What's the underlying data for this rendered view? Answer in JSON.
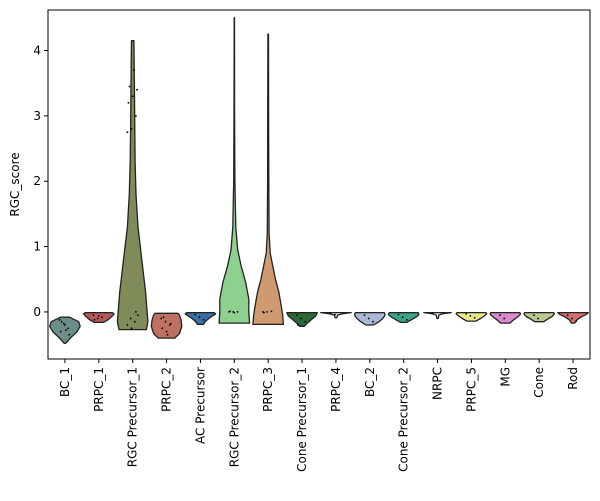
{
  "chart_data": {
    "type": "violin",
    "ylabel": "RGC_score",
    "xlabel": "",
    "ylim": [
      -0.72,
      4.62
    ],
    "yticks": [
      0,
      1,
      2,
      3,
      4
    ],
    "grid": false,
    "categories": [
      "BC_1",
      "PRPC_1",
      "RGC Precursor_1",
      "PRPC_2",
      "AC Precursor",
      "RGC Precursor_2",
      "PRPC_3",
      "Cone Precursor_1",
      "PRPC_4",
      "BC_2",
      "Cone Precursor_2",
      "NRPC",
      "PRPC_5",
      "MG",
      "Cone",
      "Rod"
    ],
    "series": [
      {
        "category": "BC_1",
        "color": "#6b8e8a",
        "min": -0.48,
        "max": -0.08,
        "profile": [
          [
            -0.48,
            0.05
          ],
          [
            -0.4,
            0.35
          ],
          [
            -0.3,
            0.8
          ],
          [
            -0.22,
            1.0
          ],
          [
            -0.15,
            0.9
          ],
          [
            -0.08,
            0.3
          ]
        ],
        "points": [
          -0.12,
          -0.18,
          -0.25,
          -0.3,
          -0.2,
          -0.35,
          -0.15,
          -0.28
        ]
      },
      {
        "category": "PRPC_1",
        "color": "#b45a5a",
        "min": -0.16,
        "max": -0.01,
        "profile": [
          [
            -0.16,
            0.3
          ],
          [
            -0.12,
            0.6
          ],
          [
            -0.07,
            0.85
          ],
          [
            -0.03,
            1.0
          ],
          [
            -0.01,
            0.9
          ]
        ],
        "points": [
          -0.05,
          -0.1,
          -0.08,
          -0.12,
          -0.06
        ]
      },
      {
        "category": "RGC Precursor_1",
        "color": "#7f8c5a",
        "min": -0.27,
        "max": 4.15,
        "profile": [
          [
            -0.27,
            0.9
          ],
          [
            -0.15,
            1.0
          ],
          [
            0.3,
            0.85
          ],
          [
            0.8,
            0.6
          ],
          [
            1.3,
            0.35
          ],
          [
            1.8,
            0.22
          ],
          [
            2.3,
            0.16
          ],
          [
            2.8,
            0.14
          ],
          [
            3.3,
            0.12
          ],
          [
            3.8,
            0.1
          ],
          [
            4.15,
            0.08
          ]
        ],
        "points": [
          2.75,
          2.8,
          3.0,
          3.2,
          3.3,
          3.4,
          3.45,
          3.7,
          -0.05,
          -0.1,
          -0.15,
          -0.2,
          -0.25,
          0.0
        ]
      },
      {
        "category": "PRPC_2",
        "color": "#c07060",
        "min": -0.4,
        "max": -0.02,
        "profile": [
          [
            -0.4,
            0.55
          ],
          [
            -0.33,
            0.85
          ],
          [
            -0.22,
            1.0
          ],
          [
            -0.12,
            0.95
          ],
          [
            -0.05,
            0.85
          ],
          [
            -0.02,
            0.75
          ]
        ],
        "points": [
          -0.1,
          -0.15,
          -0.2,
          -0.25,
          -0.3,
          -0.18,
          -0.08,
          -0.35
        ]
      },
      {
        "category": "AC Precursor",
        "color": "#3a6ea5",
        "min": -0.19,
        "max": -0.01,
        "profile": [
          [
            -0.19,
            0.2
          ],
          [
            -0.14,
            0.35
          ],
          [
            -0.1,
            0.55
          ],
          [
            -0.06,
            0.8
          ],
          [
            -0.03,
            1.0
          ],
          [
            -0.01,
            0.9
          ]
        ],
        "points": [
          -0.04,
          -0.08,
          -0.12
        ]
      },
      {
        "category": "RGC Precursor_2",
        "color": "#8ed08e",
        "min": -0.17,
        "max": 4.5,
        "profile": [
          [
            -0.17,
            1.0
          ],
          [
            0.0,
            0.95
          ],
          [
            0.2,
            0.95
          ],
          [
            0.45,
            0.75
          ],
          [
            0.7,
            0.45
          ],
          [
            0.95,
            0.22
          ],
          [
            1.3,
            0.1
          ],
          [
            2.0,
            0.04
          ],
          [
            3.0,
            0.02
          ],
          [
            4.5,
            0.01
          ]
        ],
        "points": [
          0.0,
          0.0,
          0.0,
          0.01,
          -0.01
        ]
      },
      {
        "category": "PRPC_3",
        "color": "#d09a70",
        "min": -0.19,
        "max": 4.25,
        "profile": [
          [
            -0.19,
            1.0
          ],
          [
            -0.05,
            0.95
          ],
          [
            0.1,
            0.85
          ],
          [
            0.3,
            0.7
          ],
          [
            0.5,
            0.48
          ],
          [
            0.7,
            0.3
          ],
          [
            0.9,
            0.13
          ],
          [
            1.2,
            0.06
          ],
          [
            2.0,
            0.04
          ],
          [
            3.0,
            0.03
          ],
          [
            4.25,
            0.02
          ]
        ],
        "points": [
          0.0,
          0.0,
          0.01,
          -0.01
        ]
      },
      {
        "category": "Cone Precursor_1",
        "color": "#2a6a3a",
        "min": -0.22,
        "max": -0.01,
        "profile": [
          [
            -0.22,
            0.15
          ],
          [
            -0.17,
            0.35
          ],
          [
            -0.12,
            0.6
          ],
          [
            -0.06,
            0.9
          ],
          [
            -0.01,
            1.0
          ]
        ],
        "points": [
          -0.05,
          -0.1,
          -0.15,
          -0.2
        ]
      },
      {
        "category": "PRPC_4",
        "color": "#d8e0d8",
        "min": -0.09,
        "max": -0.01,
        "profile": [
          [
            -0.09,
            0.05
          ],
          [
            -0.05,
            0.1
          ],
          [
            -0.03,
            0.4
          ],
          [
            -0.01,
            1.0
          ]
        ],
        "points": [
          -0.02,
          -0.04
        ]
      },
      {
        "category": "BC_2",
        "color": "#a9b8d8",
        "min": -0.2,
        "max": -0.01,
        "profile": [
          [
            -0.2,
            0.25
          ],
          [
            -0.15,
            0.6
          ],
          [
            -0.1,
            0.85
          ],
          [
            -0.05,
            1.0
          ],
          [
            -0.01,
            0.95
          ]
        ],
        "points": [
          -0.05,
          -0.1,
          -0.15
        ]
      },
      {
        "category": "Cone Precursor_2",
        "color": "#3aa585",
        "min": -0.16,
        "max": -0.01,
        "profile": [
          [
            -0.16,
            0.2
          ],
          [
            -0.12,
            0.5
          ],
          [
            -0.08,
            0.8
          ],
          [
            -0.04,
            1.0
          ],
          [
            -0.01,
            0.95
          ]
        ],
        "points": [
          -0.04,
          -0.08,
          -0.12
        ]
      },
      {
        "category": "NRPC",
        "color": "#e6ebe6",
        "min": -0.1,
        "max": -0.01,
        "profile": [
          [
            -0.1,
            0.04
          ],
          [
            -0.05,
            0.08
          ],
          [
            -0.03,
            0.3
          ],
          [
            -0.01,
            0.9
          ]
        ],
        "points": [
          -0.02
        ]
      },
      {
        "category": "PRPC_5",
        "color": "#e8e88a",
        "min": -0.14,
        "max": -0.01,
        "profile": [
          [
            -0.14,
            0.3
          ],
          [
            -0.1,
            0.6
          ],
          [
            -0.06,
            0.85
          ],
          [
            -0.03,
            1.0
          ],
          [
            -0.01,
            0.95
          ]
        ],
        "points": [
          -0.03,
          -0.06,
          -0.09
        ]
      },
      {
        "category": "MG",
        "color": "#d68ad0",
        "min": -0.17,
        "max": -0.01,
        "profile": [
          [
            -0.17,
            0.3
          ],
          [
            -0.12,
            0.55
          ],
          [
            -0.07,
            0.85
          ],
          [
            -0.03,
            1.0
          ],
          [
            -0.01,
            0.95
          ]
        ],
        "points": [
          -0.05,
          -0.1
        ]
      },
      {
        "category": "Cone",
        "color": "#b8c890",
        "min": -0.15,
        "max": -0.01,
        "profile": [
          [
            -0.15,
            0.3
          ],
          [
            -0.11,
            0.55
          ],
          [
            -0.07,
            0.85
          ],
          [
            -0.03,
            1.0
          ],
          [
            -0.01,
            0.95
          ]
        ],
        "points": [
          -0.05,
          -0.1
        ]
      },
      {
        "category": "Rod",
        "color": "#d07070",
        "min": -0.17,
        "max": -0.01,
        "profile": [
          [
            -0.17,
            0.1
          ],
          [
            -0.12,
            0.25
          ],
          [
            -0.08,
            0.5
          ],
          [
            -0.04,
            0.85
          ],
          [
            -0.01,
            1.0
          ]
        ],
        "points": [
          -0.05,
          -0.1,
          -0.14
        ]
      }
    ]
  }
}
